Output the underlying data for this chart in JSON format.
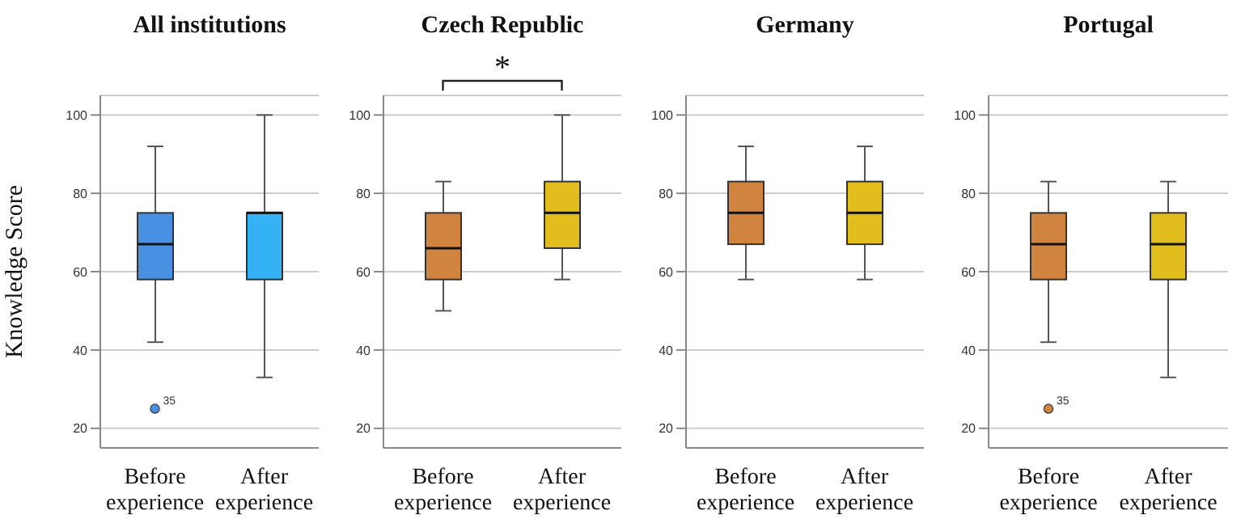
{
  "chart_data": [
    {
      "type": "box",
      "title": "All institutions",
      "ylabel": "Knowledge Score",
      "categories": [
        "Before experience",
        "After experience"
      ],
      "colors": [
        "#4a90e2",
        "#35b1f5"
      ],
      "ylim": [
        15,
        105
      ],
      "yticks": [
        20,
        40,
        60,
        80,
        100
      ],
      "grid": "y",
      "boxes": [
        {
          "low": 42,
          "q1": 58,
          "median": 67,
          "q3": 75,
          "high": 92,
          "outliers": [
            25
          ]
        },
        {
          "low": 33,
          "q1": 58,
          "median": 75,
          "q3": 75,
          "high": 100
        }
      ],
      "annotations": [
        "35"
      ]
    },
    {
      "type": "box",
      "title": "Czech Republic",
      "categories": [
        "Before experience",
        "After experience"
      ],
      "colors": [
        "#d0843f",
        "#e2bd1e"
      ],
      "ylim": [
        15,
        105
      ],
      "yticks": [
        20,
        40,
        60,
        80,
        100
      ],
      "grid": "y",
      "boxes": [
        {
          "low": 50,
          "q1": 58,
          "median": 66,
          "q3": 75,
          "high": 83
        },
        {
          "low": 58,
          "q1": 66,
          "median": 75,
          "q3": 83,
          "high": 100
        }
      ],
      "annotations": [
        "*"
      ]
    },
    {
      "type": "box",
      "title": "Germany",
      "categories": [
        "Before experience",
        "After experience"
      ],
      "colors": [
        "#d0843f",
        "#e2bd1e"
      ],
      "ylim": [
        15,
        105
      ],
      "yticks": [
        20,
        40,
        60,
        80,
        100
      ],
      "grid": "y",
      "boxes": [
        {
          "low": 58,
          "q1": 67,
          "median": 75,
          "q3": 83,
          "high": 92
        },
        {
          "low": 58,
          "q1": 67,
          "median": 75,
          "q3": 83,
          "high": 92
        }
      ]
    },
    {
      "type": "box",
      "title": "Portugal",
      "categories": [
        "Before experience",
        "After experience"
      ],
      "colors": [
        "#d0843f",
        "#e2bd1e"
      ],
      "ylim": [
        15,
        105
      ],
      "yticks": [
        20,
        40,
        60,
        80,
        100
      ],
      "grid": "y",
      "boxes": [
        {
          "low": 42,
          "q1": 58,
          "median": 67,
          "q3": 75,
          "high": 83,
          "outliers": [
            25
          ]
        },
        {
          "low": 33,
          "q1": 58,
          "median": 67,
          "q3": 75,
          "high": 83
        }
      ],
      "annotations": [
        "35"
      ]
    }
  ]
}
